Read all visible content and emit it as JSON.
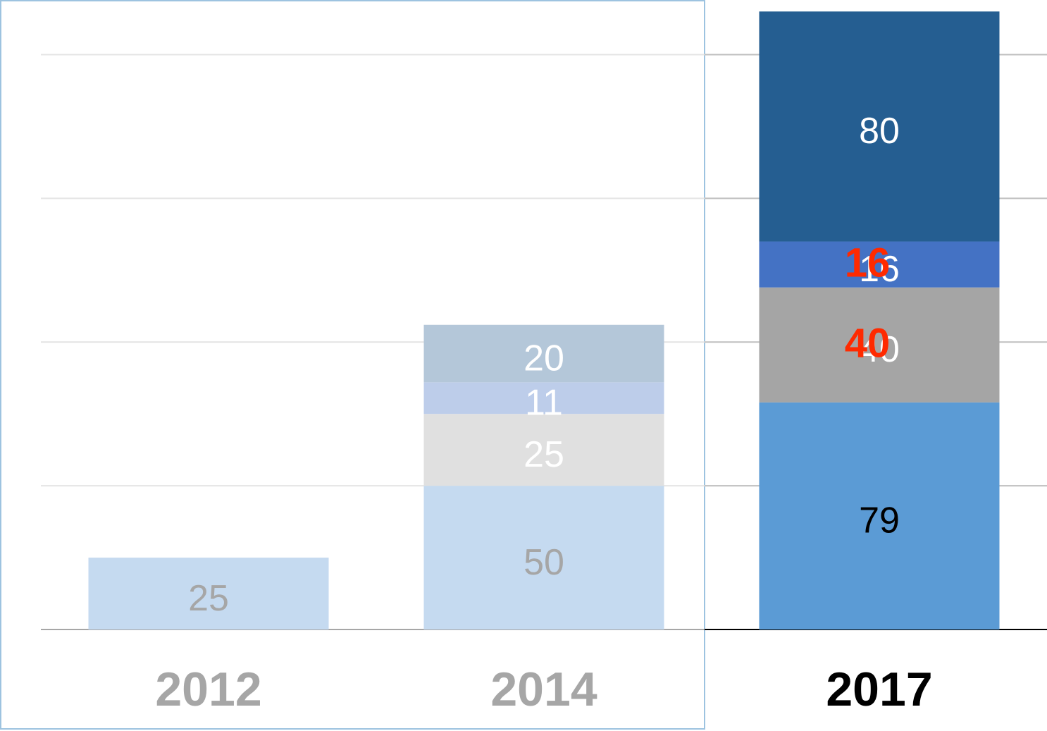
{
  "chart_data": {
    "type": "stacked_bar",
    "categories": [
      "2012",
      "2014",
      "2017"
    ],
    "category_colors": [
      "#a6a6a6",
      "#a6a6a6",
      "#000000"
    ],
    "series": [
      {
        "values": [
          25,
          50,
          79
        ],
        "colors": [
          "#c5daf0",
          "#c5daf0",
          "#5b9bd5"
        ],
        "label_colors": [
          "#a6a6a6",
          "#a6a6a6",
          "#000000"
        ]
      },
      {
        "values": [
          null,
          25,
          40
        ],
        "colors": [
          null,
          "#e0e0e0",
          "#a5a5a5"
        ],
        "label_colors": [
          null,
          "#ffffff",
          "#ffffff"
        ]
      },
      {
        "values": [
          null,
          11,
          16
        ],
        "colors": [
          null,
          "#bdcdea",
          "#4472c4"
        ],
        "label_colors": [
          null,
          "#ffffff",
          "#ffffff"
        ]
      },
      {
        "values": [
          null,
          20,
          80
        ],
        "colors": [
          null,
          "#b4c7d9",
          "#255e91"
        ],
        "label_colors": [
          null,
          "#ffffff",
          "#ffffff"
        ]
      }
    ],
    "annotations": [
      "16",
      "40"
    ],
    "annotation_color": "#ff2a00",
    "ylim": [
      0,
      219
    ],
    "yticks": [
      0,
      50,
      100,
      150,
      200
    ],
    "grid": true
  }
}
